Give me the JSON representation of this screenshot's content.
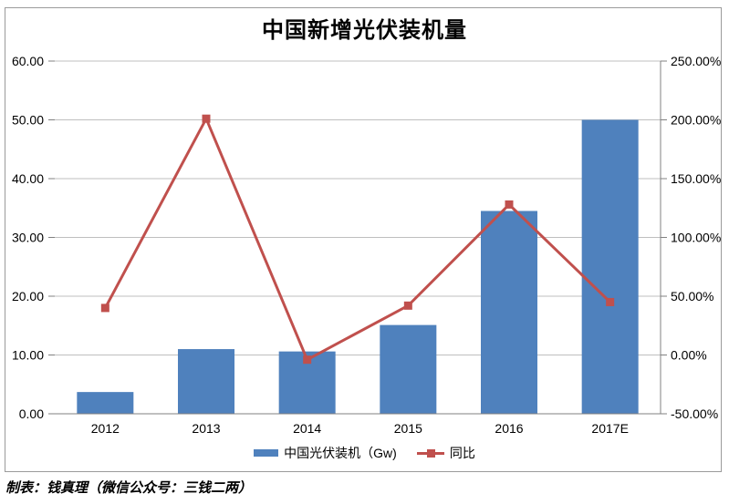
{
  "title": "中国新增光伏装机量",
  "footer": "制表：钱真理（微信公众号：三钱二两）",
  "colors": {
    "bar": "#4F81BD",
    "line": "#C0504D",
    "grid": "#BFBFBF",
    "axis": "#808080",
    "frame": "#9B9B9B",
    "text": "#000000"
  },
  "chart_data": {
    "type": "bar+line",
    "title": "中国新增光伏装机量",
    "categories": [
      "2012",
      "2013",
      "2014",
      "2015",
      "2016",
      "2017E"
    ],
    "series": [
      {
        "name": "中国光伏装机（Gw)",
        "type": "bar",
        "axis": "left",
        "values": [
          3.7,
          11.0,
          10.6,
          15.1,
          34.5,
          50.0
        ]
      },
      {
        "name": "同比",
        "type": "line",
        "axis": "right",
        "values": [
          40,
          201,
          -4,
          42,
          128,
          45
        ],
        "unit": "%"
      }
    ],
    "left_axis": {
      "min": 0,
      "max": 60,
      "step": 10,
      "tick_labels": [
        "0.00",
        "10.00",
        "20.00",
        "30.00",
        "40.00",
        "50.00",
        "60.00"
      ]
    },
    "right_axis": {
      "min": -50,
      "max": 250,
      "step": 50,
      "tick_labels": [
        "-50.00%",
        "0.00%",
        "50.00%",
        "100.00%",
        "150.00%",
        "200.00%",
        "250.00%"
      ]
    },
    "legend": [
      {
        "label": "中国光伏装机（Gw)",
        "swatch": "bar"
      },
      {
        "label": "同比",
        "swatch": "line"
      }
    ],
    "grid": true,
    "legend_position": "bottom"
  }
}
